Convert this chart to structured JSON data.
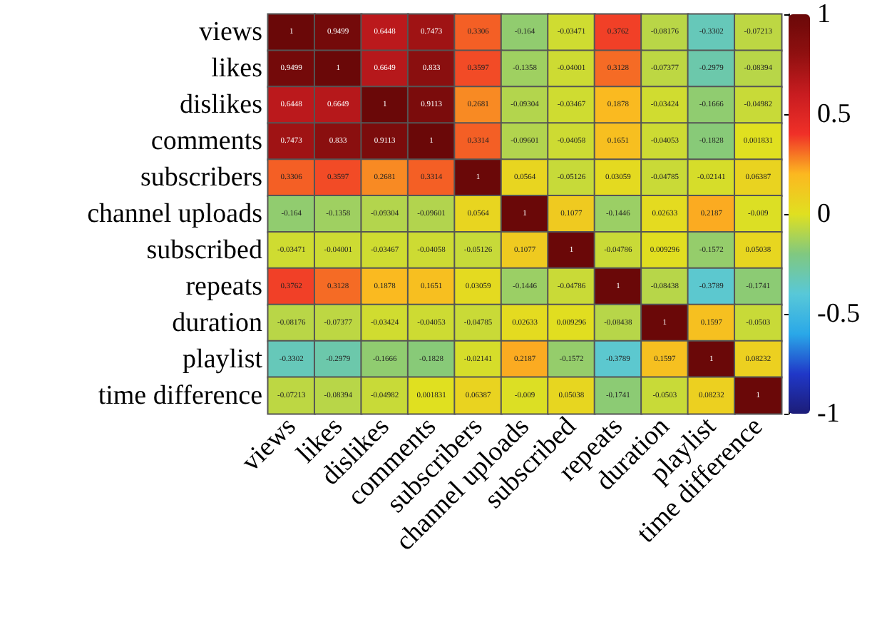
{
  "chart_data": {
    "type": "heatmap",
    "categories": [
      "views",
      "likes",
      "dislikes",
      "comments",
      "subscribers",
      "channel uploads",
      "subscribed",
      "repeats",
      "duration",
      "playlist",
      "time difference"
    ],
    "y_categories": [
      "views",
      "likes",
      "dislikes",
      "comments",
      "subscribers",
      "channel uploads",
      "subscribed",
      "repeats",
      "duration",
      "playlist",
      "time difference"
    ],
    "cells": [
      [
        1,
        0.9499,
        0.6448,
        0.7473,
        0.3306,
        -0.164,
        -0.03471,
        0.3762,
        -0.08176,
        -0.3302,
        -0.07213
      ],
      [
        0.9499,
        1,
        0.6649,
        0.833,
        0.3597,
        -0.1358,
        -0.04001,
        0.3128,
        -0.07377,
        -0.2979,
        -0.08394
      ],
      [
        0.6448,
        0.6649,
        1,
        0.9113,
        0.2681,
        -0.09304,
        -0.03467,
        0.1878,
        -0.03424,
        -0.1666,
        -0.04982
      ],
      [
        0.7473,
        0.833,
        0.9113,
        1,
        0.3314,
        -0.09601,
        -0.04058,
        0.1651,
        -0.04053,
        -0.1828,
        0.001831
      ],
      [
        0.3306,
        0.3597,
        0.2681,
        0.3314,
        1,
        0.0564,
        -0.05126,
        0.03059,
        -0.04785,
        -0.02141,
        0.06387
      ],
      [
        -0.164,
        -0.1358,
        -0.09304,
        -0.09601,
        0.0564,
        1,
        0.1077,
        -0.1446,
        0.02633,
        0.2187,
        -0.009
      ],
      [
        -0.03471,
        -0.04001,
        -0.03467,
        -0.04058,
        -0.05126,
        0.1077,
        1,
        -0.04786,
        0.009296,
        -0.1572,
        0.05038
      ],
      [
        0.3762,
        0.3128,
        0.1878,
        0.1651,
        0.03059,
        -0.1446,
        -0.04786,
        1,
        -0.08438,
        -0.3789,
        -0.1741
      ],
      [
        -0.08176,
        -0.07377,
        -0.03424,
        -0.04053,
        -0.04785,
        0.02633,
        0.009296,
        -0.08438,
        1,
        0.1597,
        -0.0503
      ],
      [
        -0.3302,
        -0.2979,
        -0.1666,
        -0.1828,
        -0.02141,
        0.2187,
        -0.1572,
        -0.3789,
        0.1597,
        1,
        0.08232
      ],
      [
        -0.07213,
        -0.08394,
        -0.04982,
        0.001831,
        0.06387,
        -0.009,
        0.05038,
        -0.1741,
        -0.0503,
        0.08232,
        1
      ]
    ],
    "data_labels": true,
    "clim": [
      -1,
      1
    ],
    "cticks": [
      -1,
      -0.5,
      0,
      0.5,
      1
    ]
  }
}
